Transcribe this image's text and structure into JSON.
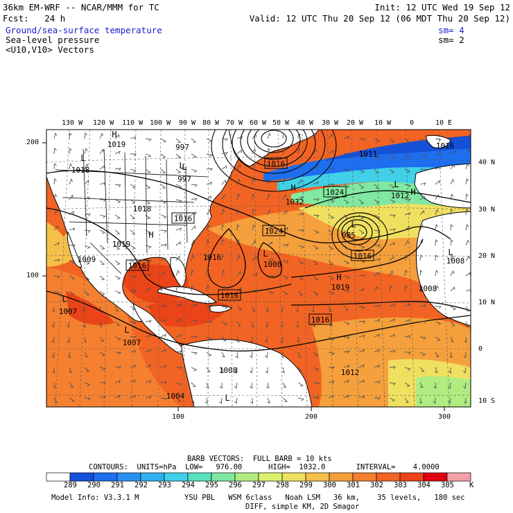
{
  "header": {
    "line1_left": "36km EM-WRF -- NCAR/MMM for TC",
    "line1_right": "Init: 12 UTC Wed 19 Sep 12",
    "line2_left": "Fcst:   24 h",
    "line2_right": "Valid: 12 UTC Thu 20 Sep 12 (06 MDT Thu 20 Sep 12)",
    "fields": [
      {
        "label": "Ground/sea-surface temperature",
        "sm": "sm= 4",
        "color": "#1a1acc"
      },
      {
        "label": "Sea-level pressure",
        "sm": "sm= 2",
        "color": "#000000"
      },
      {
        "label": "<U10,V10> Vectors",
        "sm": "",
        "color": "#000000"
      }
    ]
  },
  "map": {
    "top_lon_labels": [
      "130 W",
      "120 W",
      "110 W",
      "100 W",
      "90 W",
      "80 W",
      "70 W",
      "60 W",
      "50 W",
      "40 W",
      "30 W",
      "20 W",
      "10 W",
      "0",
      "10 E"
    ],
    "right_lat_labels": [
      "40 N",
      "30 N",
      "20 N",
      "10 N",
      "0",
      "10 S"
    ],
    "left_grid_labels": [
      "200",
      "100"
    ],
    "bottom_grid_labels": [
      "100",
      "200",
      "300"
    ],
    "pressure_boxes": [
      "1016",
      "1016",
      "1016",
      "1016",
      "1016",
      "1016",
      "1024",
      "1024"
    ],
    "pressure_values": [
      "1019",
      "997",
      "997",
      "1018",
      "1018",
      "1008",
      "1019",
      "1016",
      "1009",
      "1007",
      "1007",
      "1008",
      "1004",
      "1012",
      "1011",
      "1012",
      "1008",
      "1008",
      "1019",
      "985",
      "1032",
      "1016"
    ],
    "highs": [
      "H",
      "H",
      "H",
      "H",
      "H"
    ],
    "lows": [
      "L",
      "L",
      "L",
      "L",
      "L",
      "L",
      "L",
      "L",
      "L",
      "L"
    ],
    "colors": {
      "sst_warm": "#f2641e",
      "sst_hot": "#e84a12",
      "sst_mid": "#f7a840",
      "sst_cool": "#7be0a0",
      "sst_cold": "#2a8cf0",
      "sst_coldest": "#1a50e0",
      "land": "#ffffff",
      "contour": "#000000",
      "vector": "#505050"
    }
  },
  "footer": {
    "barb_line": "BARB VECTORS:  FULL BARB = 10 kts",
    "contours_line": "CONTOURS:  UNITS=hPa  LOW=   976.00      HIGH=  1032.0       INTERVAL=    4.0000",
    "colorbar_labels": [
      "289",
      "290",
      "291",
      "292",
      "293",
      "294",
      "295",
      "296",
      "297",
      "298",
      "299",
      "300",
      "301",
      "302",
      "303",
      "304",
      "305",
      "K"
    ],
    "colorbar_colors": [
      "#ffffff",
      "#1450d8",
      "#1e6ef0",
      "#2890f0",
      "#30b0f0",
      "#40d0e8",
      "#58e0c0",
      "#80e8a0",
      "#b0ec80",
      "#dcef6c",
      "#f0e060",
      "#f5c04a",
      "#f5a03c",
      "#f58030",
      "#f26424",
      "#ea4418",
      "#e00010",
      "#f4a0a8"
    ],
    "model_info_left": "Model Info: V3.3.1 M",
    "model_info_mid": "YSU PBL   WSM 6class   Noah LSM   36 km,    35 levels,   180 sec",
    "model_info_line2": "DIFF, simple KM, 2D Smagor"
  }
}
